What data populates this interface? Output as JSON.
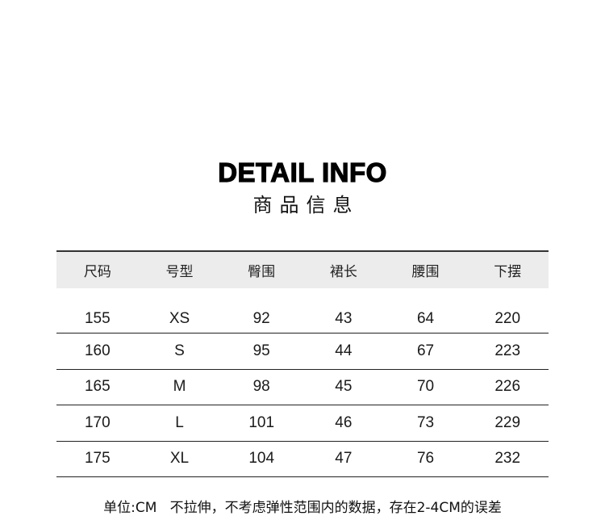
{
  "title": "DETAIL INFO",
  "subtitle": "商品信息",
  "table": {
    "headers": [
      "尺码",
      "号型",
      "臀围",
      "裙长",
      "腰围",
      "下摆"
    ],
    "rows": [
      [
        "155",
        "XS",
        "92",
        "43",
        "64",
        "220"
      ],
      [
        "160",
        "S",
        "95",
        "44",
        "67",
        "223"
      ],
      [
        "165",
        "M",
        "98",
        "45",
        "70",
        "226"
      ],
      [
        "170",
        "L",
        "101",
        "46",
        "73",
        "229"
      ],
      [
        "175",
        "XL",
        "104",
        "47",
        "76",
        "232"
      ]
    ]
  },
  "note": "单位:CM   不拉伸，不考虑弹性范围内的数据，存在2-4CM的误差"
}
